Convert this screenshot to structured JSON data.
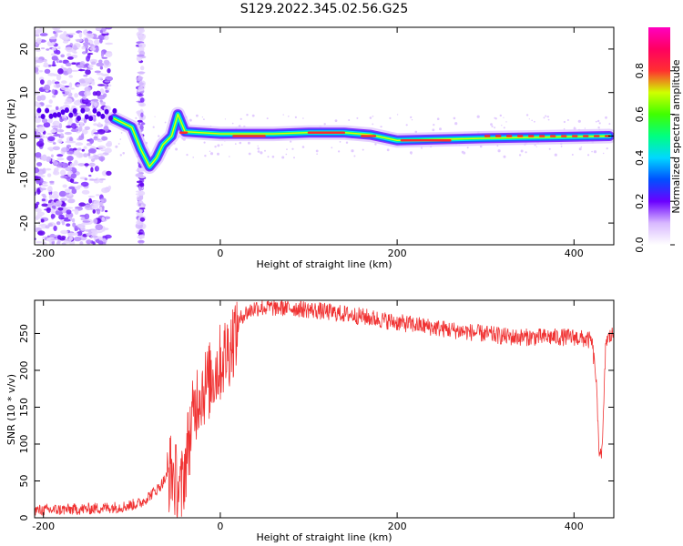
{
  "title": "S129.2022.345.02.56.G25",
  "chart_data": [
    {
      "type": "heatmap",
      "xlabel": "Height of straight line (km)",
      "ylabel": "Frequency (Hz)",
      "xlim": [
        -210,
        445
      ],
      "ylim": [
        -25,
        25
      ],
      "xticks": [
        -200,
        0,
        200,
        400
      ],
      "yticks": [
        -20,
        -10,
        0,
        10,
        20
      ],
      "colorbar": {
        "label": "Normalized spectral amplitude",
        "range": [
          0,
          1
        ],
        "ticks": [
          "0.0",
          "0.2",
          "0.4",
          "0.6",
          "0.8"
        ]
      },
      "signal_ridge": {
        "x": [
          -120,
          -100,
          -90,
          -80,
          -72,
          -65,
          -55,
          -48,
          -40,
          0,
          60,
          100,
          140,
          170,
          200,
          300,
          440
        ],
        "y": [
          4,
          2,
          -3,
          -7,
          -5,
          -2,
          0,
          5,
          1,
          0.5,
          0.5,
          0.8,
          0.8,
          0.3,
          -1,
          -0.5,
          0
        ]
      }
    },
    {
      "type": "line",
      "xlabel": "Height of straight line (km)",
      "ylabel": "SNR (10 * v/v)",
      "xlim": [
        -210,
        445
      ],
      "ylim": [
        0,
        295
      ],
      "xticks": [
        -200,
        0,
        200,
        400
      ],
      "yticks": [
        0,
        50,
        100,
        150,
        200,
        250
      ],
      "color": "#f03232",
      "series": [
        {
          "x": [
            -210,
            -150,
            -110,
            -90,
            -70,
            -55,
            -45,
            -35,
            -25,
            -15,
            -5,
            10,
            25,
            40,
            80,
            150,
            200,
            260,
            330,
            400,
            420,
            425,
            428,
            432,
            436,
            445
          ],
          "y": [
            10,
            12,
            15,
            20,
            40,
            65,
            30,
            110,
            170,
            180,
            200,
            230,
            275,
            285,
            285,
            275,
            265,
            255,
            245,
            245,
            240,
            190,
            95,
            90,
            240,
            250
          ]
        }
      ]
    }
  ]
}
